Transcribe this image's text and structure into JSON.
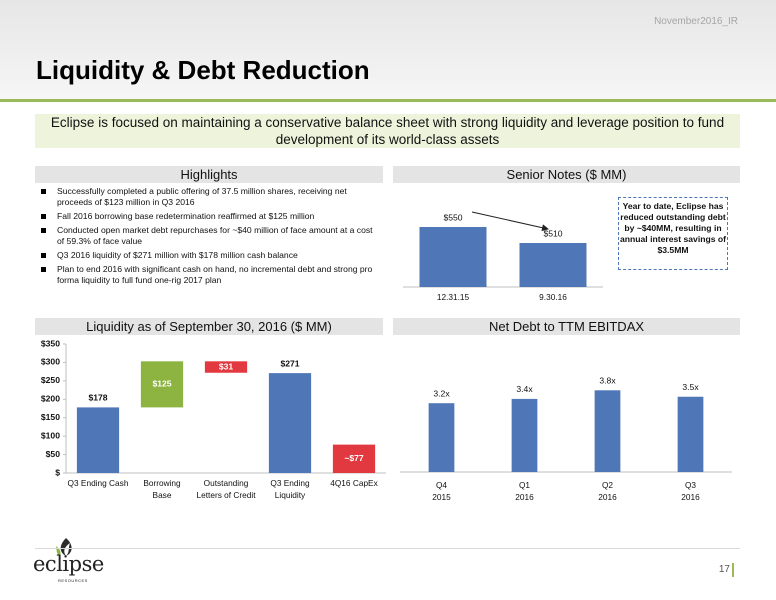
{
  "header": {
    "tag": "November2016_IR",
    "title": "Liquidity & Debt Reduction"
  },
  "banner": "Eclipse is focused on maintaining a conservative balance sheet with strong liquidity and leverage position to fund development of its world-class assets",
  "highlights": {
    "title": "Highlights",
    "items": [
      "Successfully completed a public offering of 37.5 million shares, receiving net proceeds of $123 million in Q3 2016",
      "Fall 2016 borrowing base redetermination reaffirmed at $125 million",
      "Conducted open market debt repurchases for ~$40 million of face amount at a cost of 59.3% of face value",
      "Q3 2016 liquidity of $271 million with $178 million cash balance",
      "Plan to end 2016 with significant cash on hand, no incremental debt and strong pro forma liquidity to full fund one-rig 2017 plan"
    ]
  },
  "chart_data": [
    {
      "type": "bar",
      "title": "Senior Notes ($ MM)",
      "categories": [
        "12.31.15",
        "9.30.16"
      ],
      "values": [
        550,
        510
      ],
      "value_labels": [
        "$550",
        "$510"
      ],
      "color": "#4f76b6",
      "ylim": [
        400,
        600
      ],
      "annotation": "Year to date, Eclipse has reduced outstanding debt by ~$40MM, resulting in annual interest savings of $3.5MM"
    },
    {
      "type": "waterfall",
      "title": "Liquidity as of September 30, 2016 ($ MM)",
      "categories": [
        "Q3 Ending Cash",
        "Borrowing\nBase",
        "Outstanding\nLetters of Credit",
        "Q3 Ending\nLiquidity",
        "4Q16 CapEx"
      ],
      "values": [
        178,
        125,
        -31,
        271,
        77
      ],
      "value_labels": [
        "$178",
        "$125",
        "$31",
        "$271",
        "~$77"
      ],
      "measures": [
        "absolute",
        "relative",
        "relative",
        "total",
        "absolute"
      ],
      "colors": [
        "#4f76b6",
        "#8db440",
        "#e2383f",
        "#4f76b6",
        "#e2383f"
      ],
      "ylim": [
        0,
        350
      ],
      "yticks": [
        {
          "value": 0,
          "label": "$"
        },
        {
          "value": 50,
          "label": "$50"
        },
        {
          "value": 100,
          "label": "$100"
        },
        {
          "value": 150,
          "label": "$150"
        },
        {
          "value": 200,
          "label": "$200"
        },
        {
          "value": 250,
          "label": "$250"
        },
        {
          "value": 300,
          "label": "$300"
        },
        {
          "value": 350,
          "label": "$350"
        }
      ]
    },
    {
      "type": "bar",
      "title": "Net Debt to TTM EBITDAX",
      "categories": [
        "Q4\n2015",
        "Q1\n2016",
        "Q2\n2016",
        "Q3\n2016"
      ],
      "values": [
        3.2,
        3.4,
        3.8,
        3.5
      ],
      "value_labels": [
        "3.2x",
        "3.4x",
        "3.8x",
        "3.5x"
      ],
      "color": "#4f76b6",
      "ylim": [
        0,
        6
      ]
    }
  ],
  "footer": {
    "logo": "eclipse",
    "logo_sub": "RESOURCES",
    "page": "17"
  }
}
